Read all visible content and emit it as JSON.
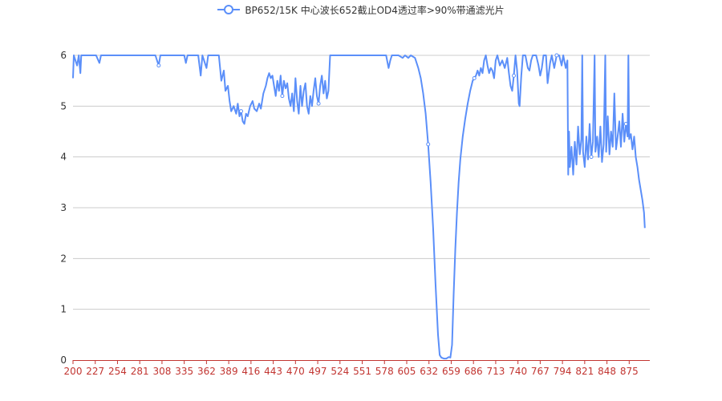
{
  "legend": {
    "label": "BP652/15K 中心波长652截止OD4透过率>90%带通滤光片"
  },
  "colors": {
    "series": "#5b8ff9",
    "axis": "#c23531",
    "grid": "#cccccc",
    "text": "#333333",
    "ytext": "#333333"
  },
  "chart_data": {
    "type": "line",
    "title": "",
    "xlabel": "",
    "ylabel": "",
    "xlim": [
      200,
      900
    ],
    "ylim": [
      0,
      6
    ],
    "grid": true,
    "legend_position": "top-center",
    "x_ticks": [
      200,
      227,
      254,
      281,
      308,
      335,
      362,
      389,
      416,
      443,
      470,
      497,
      524,
      551,
      578,
      605,
      632,
      659,
      686,
      713,
      740,
      767,
      794,
      821,
      848,
      875
    ],
    "y_ticks": [
      0,
      1,
      2,
      3,
      4,
      5,
      6
    ],
    "series": [
      {
        "name": "BP652/15K 中心波长652截止OD4透过率>90%带通滤光片",
        "points": [
          [
            200,
            5.55
          ],
          [
            201,
            6.0
          ],
          [
            205,
            5.8
          ],
          [
            207,
            6.0
          ],
          [
            209,
            5.65
          ],
          [
            210,
            6.0
          ],
          [
            222,
            6.0
          ],
          [
            228,
            6.0
          ],
          [
            232,
            5.85
          ],
          [
            234,
            6.0
          ],
          [
            300,
            6.0
          ],
          [
            304,
            5.8
          ],
          [
            306,
            6.0
          ],
          [
            335,
            6.0
          ],
          [
            337,
            5.85
          ],
          [
            339,
            6.0
          ],
          [
            352,
            6.0
          ],
          [
            355,
            5.6
          ],
          [
            357,
            6.0
          ],
          [
            362,
            5.75
          ],
          [
            364,
            6.0
          ],
          [
            370,
            6.0
          ],
          [
            377,
            6.0
          ],
          [
            380,
            5.5
          ],
          [
            383,
            5.7
          ],
          [
            385,
            5.3
          ],
          [
            388,
            5.4
          ],
          [
            390,
            5.1
          ],
          [
            392,
            4.9
          ],
          [
            395,
            5.0
          ],
          [
            398,
            4.85
          ],
          [
            400,
            5.05
          ],
          [
            402,
            4.8
          ],
          [
            404,
            4.9
          ],
          [
            406,
            4.7
          ],
          [
            408,
            4.65
          ],
          [
            410,
            4.85
          ],
          [
            412,
            4.8
          ],
          [
            415,
            5.0
          ],
          [
            418,
            5.1
          ],
          [
            420,
            4.95
          ],
          [
            423,
            4.9
          ],
          [
            426,
            5.05
          ],
          [
            428,
            4.95
          ],
          [
            431,
            5.25
          ],
          [
            434,
            5.4
          ],
          [
            436,
            5.55
          ],
          [
            438,
            5.65
          ],
          [
            440,
            5.55
          ],
          [
            442,
            5.6
          ],
          [
            444,
            5.4
          ],
          [
            446,
            5.2
          ],
          [
            448,
            5.5
          ],
          [
            450,
            5.3
          ],
          [
            452,
            5.6
          ],
          [
            454,
            5.2
          ],
          [
            456,
            5.5
          ],
          [
            458,
            5.35
          ],
          [
            460,
            5.45
          ],
          [
            462,
            5.15
          ],
          [
            464,
            5.0
          ],
          [
            466,
            5.25
          ],
          [
            468,
            4.9
          ],
          [
            470,
            5.55
          ],
          [
            472,
            5.1
          ],
          [
            474,
            4.85
          ],
          [
            476,
            5.4
          ],
          [
            478,
            5.0
          ],
          [
            480,
            5.3
          ],
          [
            482,
            5.45
          ],
          [
            484,
            5.0
          ],
          [
            486,
            4.85
          ],
          [
            488,
            5.2
          ],
          [
            490,
            5.0
          ],
          [
            492,
            5.3
          ],
          [
            494,
            5.55
          ],
          [
            496,
            5.2
          ],
          [
            498,
            5.05
          ],
          [
            500,
            5.4
          ],
          [
            502,
            5.6
          ],
          [
            504,
            5.25
          ],
          [
            506,
            5.5
          ],
          [
            508,
            5.15
          ],
          [
            510,
            5.3
          ],
          [
            512,
            6.0
          ],
          [
            580,
            6.0
          ],
          [
            583,
            5.75
          ],
          [
            585,
            5.9
          ],
          [
            587,
            6.0
          ],
          [
            595,
            6.0
          ],
          [
            600,
            5.95
          ],
          [
            603,
            6.0
          ],
          [
            607,
            5.95
          ],
          [
            610,
            6.0
          ],
          [
            615,
            5.95
          ],
          [
            619,
            5.75
          ],
          [
            622,
            5.55
          ],
          [
            625,
            5.25
          ],
          [
            628,
            4.85
          ],
          [
            631,
            4.25
          ],
          [
            634,
            3.5
          ],
          [
            637,
            2.6
          ],
          [
            640,
            1.5
          ],
          [
            643,
            0.5
          ],
          [
            645,
            0.1
          ],
          [
            647,
            0.05
          ],
          [
            650,
            0.03
          ],
          [
            653,
            0.03
          ],
          [
            656,
            0.06
          ],
          [
            658,
            0.05
          ],
          [
            660,
            0.3
          ],
          [
            662,
            1.3
          ],
          [
            664,
            2.2
          ],
          [
            666,
            2.9
          ],
          [
            668,
            3.5
          ],
          [
            670,
            3.95
          ],
          [
            673,
            4.4
          ],
          [
            676,
            4.75
          ],
          [
            679,
            5.05
          ],
          [
            682,
            5.3
          ],
          [
            685,
            5.5
          ],
          [
            687,
            5.55
          ],
          [
            689,
            5.6
          ],
          [
            691,
            5.7
          ],
          [
            693,
            5.6
          ],
          [
            695,
            5.75
          ],
          [
            697,
            5.65
          ],
          [
            699,
            5.9
          ],
          [
            701,
            6.0
          ],
          [
            703,
            5.8
          ],
          [
            705,
            5.65
          ],
          [
            707,
            5.75
          ],
          [
            709,
            5.7
          ],
          [
            711,
            5.55
          ],
          [
            713,
            5.9
          ],
          [
            715,
            6.0
          ],
          [
            718,
            5.8
          ],
          [
            721,
            5.9
          ],
          [
            724,
            5.75
          ],
          [
            727,
            5.95
          ],
          [
            729,
            5.65
          ],
          [
            731,
            5.4
          ],
          [
            733,
            5.3
          ],
          [
            735,
            5.6
          ],
          [
            737,
            6.0
          ],
          [
            739,
            5.7
          ],
          [
            741,
            5.05
          ],
          [
            742,
            5.0
          ],
          [
            744,
            5.6
          ],
          [
            746,
            6.0
          ],
          [
            749,
            6.0
          ],
          [
            752,
            5.75
          ],
          [
            754,
            5.7
          ],
          [
            756,
            5.9
          ],
          [
            758,
            6.0
          ],
          [
            762,
            6.0
          ],
          [
            765,
            5.8
          ],
          [
            767,
            5.6
          ],
          [
            769,
            5.75
          ],
          [
            771,
            6.0
          ],
          [
            774,
            6.0
          ],
          [
            776,
            5.45
          ],
          [
            779,
            5.85
          ],
          [
            781,
            6.0
          ],
          [
            784,
            5.75
          ],
          [
            787,
            6.0
          ],
          [
            790,
            6.0
          ],
          [
            793,
            5.8
          ],
          [
            795,
            6.0
          ],
          [
            798,
            5.75
          ],
          [
            800,
            5.9
          ],
          [
            801,
            3.65
          ],
          [
            802,
            4.5
          ],
          [
            803,
            3.8
          ],
          [
            805,
            4.2
          ],
          [
            807,
            3.65
          ],
          [
            809,
            4.3
          ],
          [
            811,
            3.85
          ],
          [
            813,
            4.6
          ],
          [
            815,
            4.05
          ],
          [
            817,
            4.35
          ],
          [
            818,
            6.0
          ],
          [
            819,
            4.1
          ],
          [
            821,
            3.8
          ],
          [
            823,
            4.4
          ],
          [
            825,
            3.95
          ],
          [
            827,
            4.65
          ],
          [
            829,
            4.0
          ],
          [
            831,
            4.3
          ],
          [
            833,
            6.0
          ],
          [
            834,
            4.1
          ],
          [
            836,
            4.4
          ],
          [
            838,
            4.0
          ],
          [
            840,
            4.6
          ],
          [
            842,
            3.9
          ],
          [
            844,
            4.25
          ],
          [
            846,
            6.0
          ],
          [
            847,
            4.1
          ],
          [
            849,
            4.8
          ],
          [
            851,
            4.05
          ],
          [
            853,
            4.5
          ],
          [
            855,
            4.2
          ],
          [
            857,
            5.25
          ],
          [
            859,
            4.15
          ],
          [
            861,
            4.4
          ],
          [
            863,
            4.7
          ],
          [
            865,
            4.2
          ],
          [
            867,
            4.85
          ],
          [
            869,
            4.3
          ],
          [
            871,
            4.65
          ],
          [
            873,
            4.4
          ],
          [
            874,
            6.0
          ],
          [
            875,
            4.35
          ],
          [
            877,
            4.45
          ],
          [
            879,
            4.15
          ],
          [
            881,
            4.4
          ],
          [
            883,
            4.0
          ],
          [
            885,
            3.8
          ],
          [
            887,
            3.55
          ],
          [
            889,
            3.35
          ],
          [
            891,
            3.15
          ],
          [
            893,
            2.9
          ],
          [
            894,
            2.6
          ]
        ]
      }
    ]
  }
}
